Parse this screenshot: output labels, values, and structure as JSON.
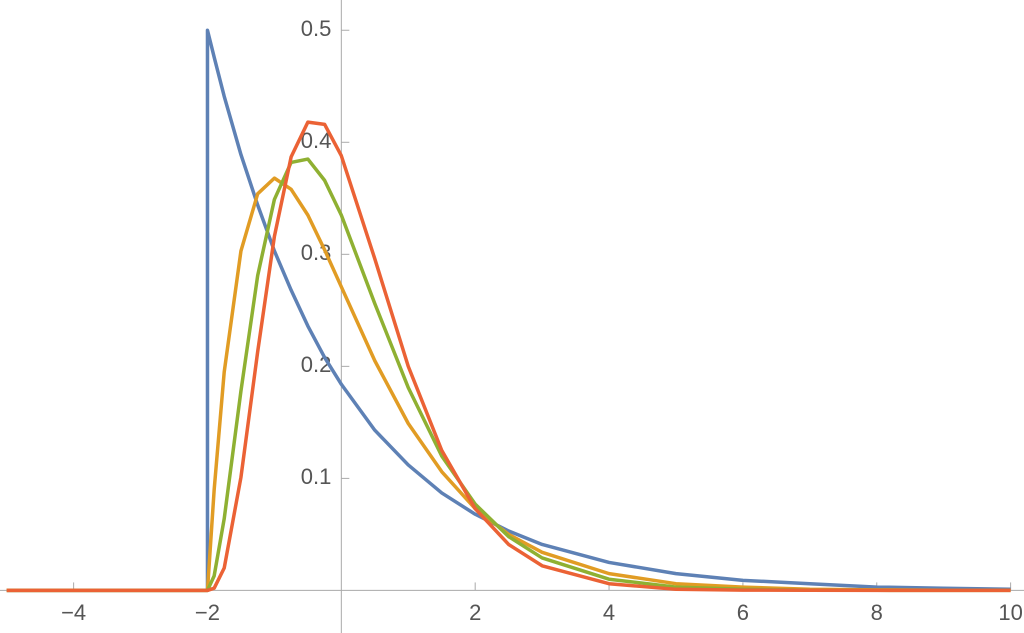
{
  "chart_data": {
    "type": "line",
    "x": [
      -5,
      -2,
      -2,
      -1.9,
      -1.75,
      -1.5,
      -1.25,
      -1,
      -0.75,
      -0.5,
      -0.25,
      0,
      0.5,
      1,
      1.5,
      2,
      2.5,
      3,
      4,
      5,
      6,
      7,
      8,
      9,
      10
    ],
    "series": [
      {
        "color": "#5e81b5",
        "values": [
          0,
          0,
          0.5,
          0.476,
          0.441,
          0.389,
          0.344,
          0.303,
          0.268,
          0.236,
          0.208,
          0.184,
          0.143,
          0.112,
          0.087,
          0.068,
          0.053,
          0.041,
          0.025,
          0.015,
          0.009,
          0.006,
          0.003,
          0.002,
          0.001
        ]
      },
      {
        "color": "#e19c24",
        "values": [
          0,
          0,
          0,
          0.09,
          0.195,
          0.303,
          0.354,
          0.368,
          0.358,
          0.335,
          0.304,
          0.271,
          0.205,
          0.149,
          0.106,
          0.073,
          0.05,
          0.034,
          0.015,
          0.006,
          0.003,
          0.001,
          0.0005,
          0.0002,
          0.0001
        ]
      },
      {
        "color": "#8fb032",
        "values": [
          0,
          0,
          0,
          0.013,
          0.064,
          0.178,
          0.281,
          0.349,
          0.382,
          0.385,
          0.366,
          0.335,
          0.256,
          0.181,
          0.12,
          0.077,
          0.048,
          0.029,
          0.01,
          0.003,
          0.001,
          0.0003,
          0.0001,
          0,
          0
        ]
      },
      {
        "color": "#eb6235",
        "values": [
          0,
          0,
          0,
          0.002,
          0.02,
          0.101,
          0.213,
          0.316,
          0.387,
          0.418,
          0.416,
          0.388,
          0.296,
          0.2,
          0.125,
          0.073,
          0.041,
          0.022,
          0.006,
          0.001,
          0.0003,
          0.0001,
          0,
          0,
          0
        ]
      }
    ],
    "xlim": [
      -5.1,
      10.2
    ],
    "ylim": [
      -0.038,
      0.527
    ],
    "xticks": [
      {
        "value": -4,
        "label": "−4"
      },
      {
        "value": -2,
        "label": "−2"
      },
      2,
      4,
      6,
      8,
      10
    ],
    "yticks": [
      0.1,
      0.2,
      0.3,
      0.4,
      0.5
    ]
  }
}
